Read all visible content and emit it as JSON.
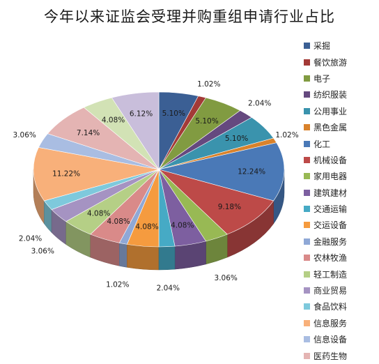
{
  "chart_data": {
    "type": "pie",
    "title": "今年以来证监会受理并购重组申请行业占比",
    "legend_position": "right",
    "slices": [
      {
        "name": "采掘",
        "label": "5.10%",
        "value": 5.1,
        "color": "#3b5f94"
      },
      {
        "name": "餐饮旅游",
        "label": "1.02%",
        "value": 1.02,
        "color": "#a33a37"
      },
      {
        "name": "电子",
        "label": "5.10%",
        "value": 5.1,
        "color": "#819b41"
      },
      {
        "name": "纺织服装",
        "label": "2.04%",
        "value": 2.04,
        "color": "#65497f"
      },
      {
        "name": "公用事业",
        "label": "5.10%",
        "value": 5.1,
        "color": "#3a93ad"
      },
      {
        "name": "黑色金属",
        "label": "1.02%",
        "value": 1.02,
        "color": "#d9822b"
      },
      {
        "name": "化工",
        "label": "12.24%",
        "value": 12.24,
        "color": "#4a79b7"
      },
      {
        "name": "机械设备",
        "label": "9.18%",
        "value": 9.18,
        "color": "#bd4a48"
      },
      {
        "name": "家用电器",
        "label": "3.06%",
        "value": 3.06,
        "color": "#98b954"
      },
      {
        "name": "建筑建材",
        "label": "4.08%",
        "value": 4.08,
        "color": "#7d5fa0"
      },
      {
        "name": "交通运输",
        "label": "2.04%",
        "value": 2.04,
        "color": "#46aac5"
      },
      {
        "name": "交运设备",
        "label": "4.08%",
        "value": 4.08,
        "color": "#f59b3f"
      },
      {
        "name": "金融服务",
        "label": "1.02%",
        "value": 1.02,
        "color": "#8fa8d6"
      },
      {
        "name": "农林牧渔",
        "label": "4.08%",
        "value": 4.08,
        "color": "#d98a89"
      },
      {
        "name": "轻工制造",
        "label": "4.08%",
        "value": 4.08,
        "color": "#b5cf86"
      },
      {
        "name": "商业贸易",
        "label": "3.06%",
        "value": 3.06,
        "color": "#a593c2"
      },
      {
        "name": "食品饮料",
        "label": "2.04%",
        "value": 2.04,
        "color": "#7ec9dc"
      },
      {
        "name": "信息服务",
        "label": "11.22%",
        "value": 11.22,
        "color": "#f8b07a"
      },
      {
        "name": "信息设备",
        "label": "3.06%",
        "value": 3.06,
        "color": "#a9bde2"
      },
      {
        "name": "医药生物",
        "label": "7.14%",
        "value": 7.14,
        "color": "#e4b4b3"
      },
      {
        "name": "",
        "label": "4.08%",
        "value": 4.08,
        "color": "#d2e2b5"
      },
      {
        "name": "",
        "label": "6.12%",
        "value": 6.12,
        "color": "#c9bedb"
      }
    ]
  }
}
